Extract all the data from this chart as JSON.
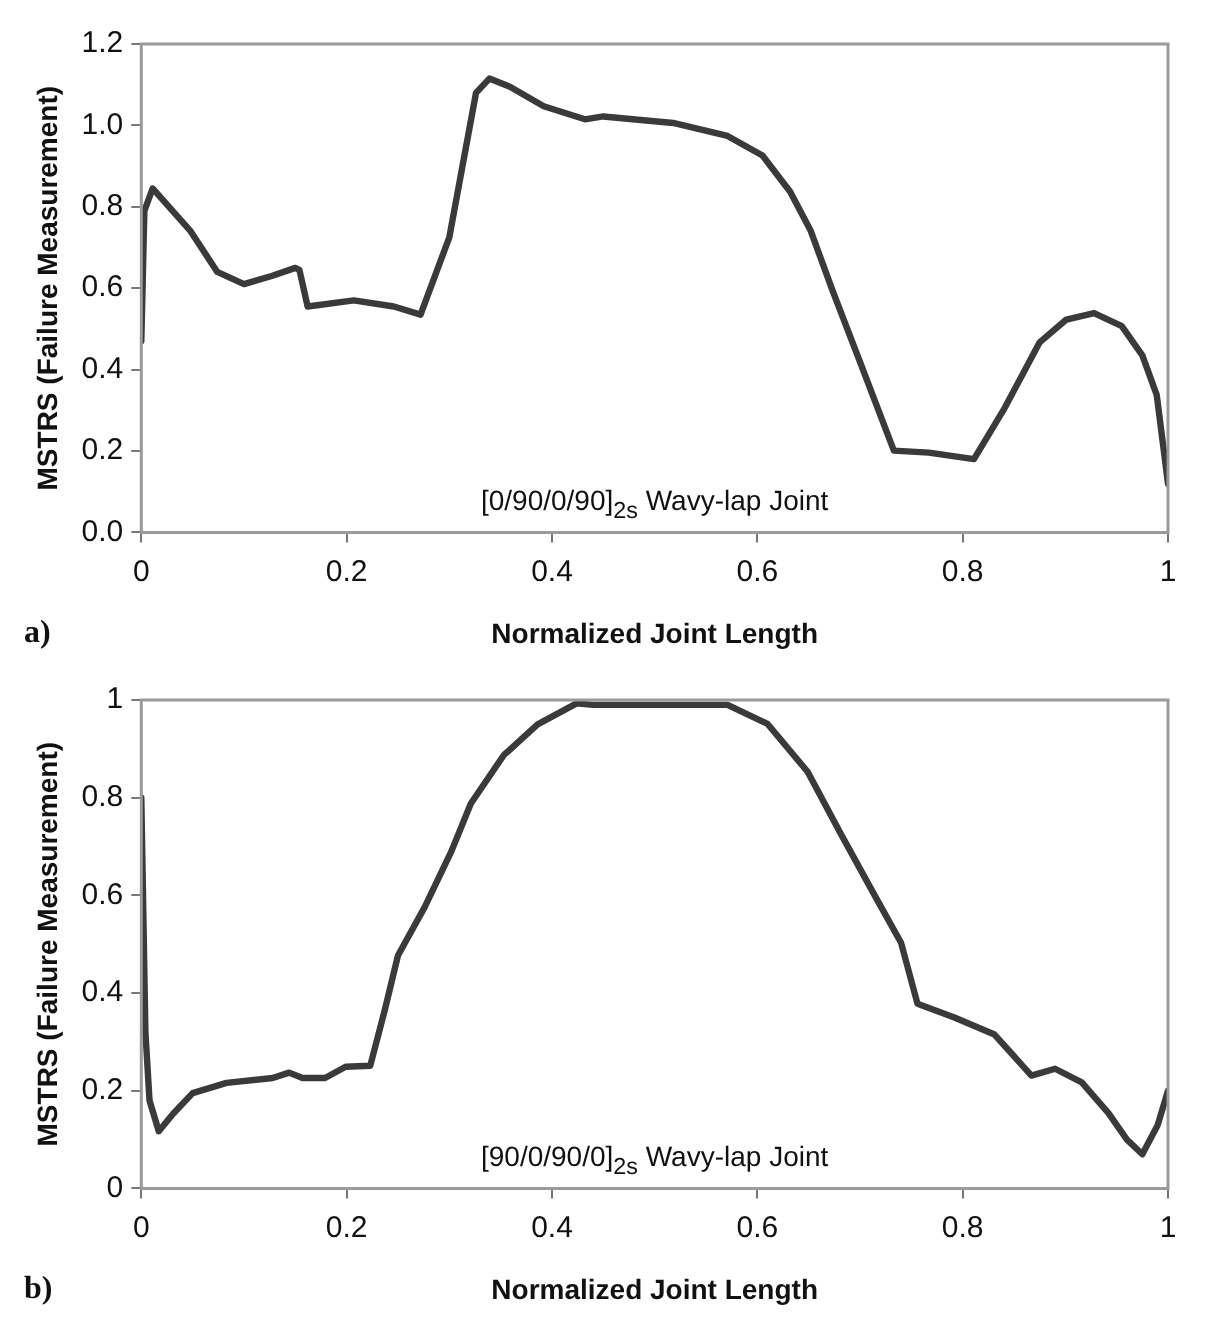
{
  "chart_data": [
    {
      "type": "line",
      "xlabel": "Normalized Joint Length",
      "ylabel": "MSTRS (Failure Measurement)",
      "annotations": [
        "[0/90/0/90]$_{2s}$ Wavy-lap Joint",
        "a)"
      ],
      "xlim": [
        0,
        1
      ],
      "xticks": [
        0,
        0.2,
        0.4,
        0.6,
        0.8,
        1
      ],
      "ylim": [
        0,
        1.2
      ],
      "yticks": [
        {
          "value": 0,
          "label": "0.0"
        },
        0.2,
        0.4,
        0.6,
        0.8,
        {
          "value": 1,
          "label": "1.0"
        },
        1.2
      ],
      "grid": false,
      "legend": false,
      "marker": "none",
      "line_style": "solid",
      "series": [
        {
          "color": "#3a3a3a",
          "x": [
            0,
            0.003,
            0.011,
            0.048,
            0.074,
            0.1,
            0.127,
            0.15,
            0.154,
            0.162,
            0.207,
            0.246,
            0.272,
            0.3,
            0.326,
            0.339,
            0.359,
            0.392,
            0.432,
            0.45,
            0.518,
            0.571,
            0.605,
            0.632,
            0.652,
            0.673,
            0.7,
            0.733,
            0.767,
            0.811,
            0.841,
            0.875,
            0.901,
            0.928,
            0.955,
            0.975,
            0.989,
            1
          ],
          "values": [
            0.47,
            0.79,
            0.845,
            0.74,
            0.64,
            0.61,
            0.63,
            0.65,
            0.645,
            0.555,
            0.57,
            0.555,
            0.535,
            0.725,
            1.08,
            1.115,
            1.095,
            1.047,
            1.015,
            1.022,
            1.006,
            0.974,
            0.926,
            0.837,
            0.741,
            0.596,
            0.419,
            0.201,
            0.196,
            0.18,
            0.306,
            0.467,
            0.523,
            0.539,
            0.507,
            0.435,
            0.338,
            0.12
          ]
        }
      ]
    },
    {
      "type": "line",
      "xlabel": "Normalized Joint Length",
      "ylabel": "MSTRS (Failure Measurement)",
      "annotations": [
        "[90/0/90/0]$_{2s}$ Wavy-lap Joint",
        "b)"
      ],
      "xlim": [
        0,
        1
      ],
      "xticks": [
        0,
        0.2,
        0.4,
        0.6,
        0.8,
        1
      ],
      "ylim": [
        0,
        1
      ],
      "yticks": [
        0,
        0.2,
        0.4,
        0.6,
        0.8,
        1
      ],
      "grid": false,
      "legend": false,
      "marker": "none",
      "line_style": "solid",
      "series": [
        {
          "color": "#3a3a3a",
          "x": [
            0,
            0.004,
            0.008,
            0.017,
            0.031,
            0.05,
            0.083,
            0.128,
            0.144,
            0.157,
            0.179,
            0.199,
            0.223,
            0.237,
            0.25,
            0.276,
            0.302,
            0.321,
            0.353,
            0.386,
            0.424,
            0.44,
            0.571,
            0.61,
            0.649,
            0.681,
            0.714,
            0.74,
            0.756,
            0.792,
            0.831,
            0.867,
            0.89,
            0.916,
            0.942,
            0.96,
            0.975,
            0.99,
            1
          ],
          "values": [
            0.8,
            0.32,
            0.18,
            0.117,
            0.153,
            0.195,
            0.216,
            0.226,
            0.237,
            0.226,
            0.226,
            0.249,
            0.251,
            0.364,
            0.477,
            0.576,
            0.69,
            0.788,
            0.887,
            0.95,
            0.993,
            0.99,
            0.99,
            0.951,
            0.853,
            0.727,
            0.601,
            0.503,
            0.378,
            0.35,
            0.315,
            0.231,
            0.245,
            0.217,
            0.154,
            0.1,
            0.07,
            0.13,
            0.2
          ]
        }
      ]
    }
  ]
}
